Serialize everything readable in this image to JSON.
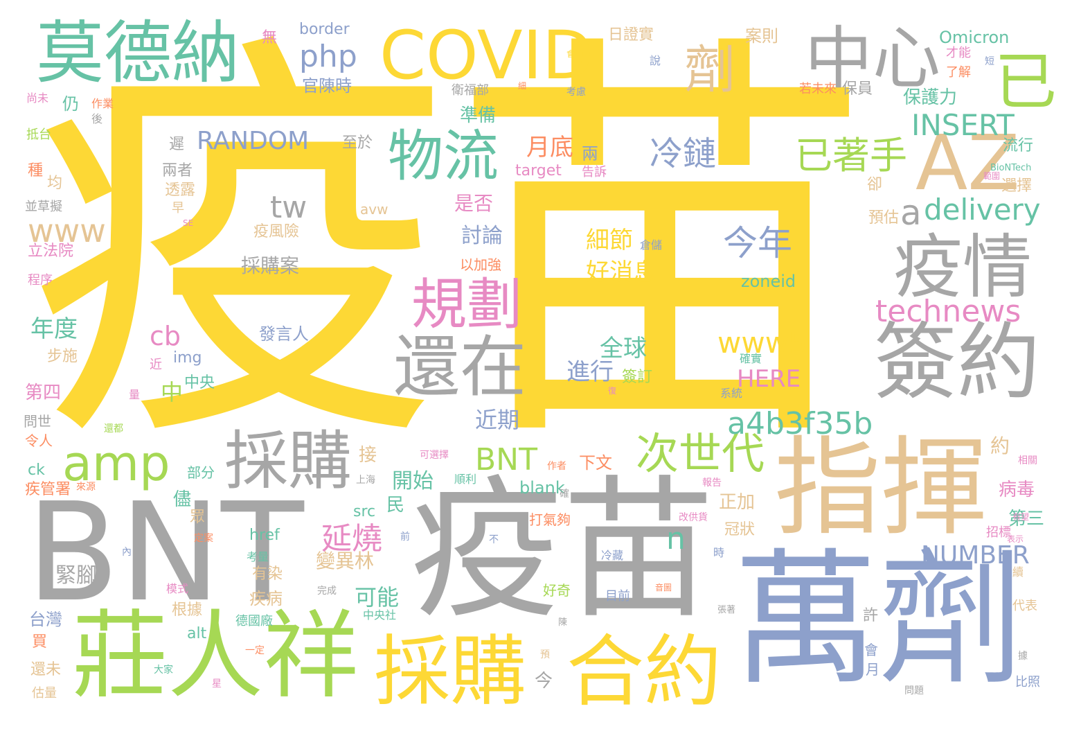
{
  "palette": {
    "yellow": "#fdd835",
    "grey": "#a6a6a6",
    "green": "#66c2a5",
    "blue": "#8da0cb",
    "lime": "#a6d854",
    "pink": "#e78ac3",
    "tan": "#e5c494",
    "orange": "#fc8d62"
  },
  "words": [
    {
      "text": "疫苗",
      "color": "yellow"
    },
    {
      "text": "BNT",
      "color": "grey"
    },
    {
      "text": "疫苗",
      "color": "grey"
    },
    {
      "text": "萬劑",
      "color": "blue"
    },
    {
      "text": "指揮",
      "color": "tan"
    },
    {
      "text": "莊人祥",
      "color": "lime"
    },
    {
      "text": "採購",
      "color": "yellow"
    },
    {
      "text": "合約",
      "color": "yellow"
    },
    {
      "text": "COVID",
      "color": "yellow"
    },
    {
      "text": "莫德納",
      "color": "green"
    },
    {
      "text": "中心",
      "color": "grey"
    },
    {
      "text": "AZ",
      "color": "tan"
    },
    {
      "text": "疫情",
      "color": "grey"
    },
    {
      "text": "簽約",
      "color": "grey"
    },
    {
      "text": "還在",
      "color": "grey"
    },
    {
      "text": "物流",
      "color": "green"
    },
    {
      "text": "採購",
      "color": "grey"
    },
    {
      "text": "規劃",
      "color": "pink"
    },
    {
      "text": "amp",
      "color": "lime"
    },
    {
      "text": "次世代",
      "color": "lime"
    },
    {
      "text": "已著手",
      "color": "lime"
    },
    {
      "text": "劑",
      "color": "tan"
    },
    {
      "text": "已",
      "color": "lime"
    },
    {
      "text": "php",
      "color": "blue"
    },
    {
      "text": "冷鏈",
      "color": "blue"
    },
    {
      "text": "今年",
      "color": "blue"
    },
    {
      "text": "INSERT",
      "color": "green"
    },
    {
      "text": "delivery",
      "color": "green"
    },
    {
      "text": "technews",
      "color": "pink"
    },
    {
      "text": "www5",
      "color": "yellow"
    },
    {
      "text": "a4b3f35b",
      "color": "green"
    },
    {
      "text": "RANDOM",
      "color": "blue"
    },
    {
      "text": "www",
      "color": "tan"
    },
    {
      "text": "tw",
      "color": "grey"
    },
    {
      "text": "a",
      "color": "grey"
    },
    {
      "text": "BNT",
      "color": "lime"
    },
    {
      "text": "延燒",
      "color": "pink"
    },
    {
      "text": "NUMBER",
      "color": "blue"
    },
    {
      "text": "月底",
      "color": "orange"
    },
    {
      "text": "細節",
      "color": "yellow"
    },
    {
      "text": "好消息",
      "color": "yellow"
    },
    {
      "text": "全球",
      "color": "green"
    },
    {
      "text": "進行",
      "color": "blue"
    },
    {
      "text": "HERE",
      "color": "pink"
    },
    {
      "text": "zoneid",
      "color": "green"
    },
    {
      "text": "cb",
      "color": "pink"
    },
    {
      "text": "年度",
      "color": "green"
    },
    {
      "text": "Omicron",
      "color": "green"
    },
    {
      "text": "border",
      "color": "blue"
    },
    {
      "text": "日證實",
      "color": "tan"
    },
    {
      "text": "官陳時",
      "color": "blue"
    },
    {
      "text": "衛福部",
      "color": "grey"
    },
    {
      "text": "準備",
      "color": "green"
    },
    {
      "text": "保護力",
      "color": "green"
    },
    {
      "text": "流行",
      "color": "green"
    },
    {
      "text": "選擇",
      "color": "tan"
    },
    {
      "text": "討論",
      "color": "blue"
    },
    {
      "text": "採購案",
      "color": "grey"
    },
    {
      "text": "疫風險",
      "color": "tan"
    },
    {
      "text": "以加強",
      "color": "orange"
    },
    {
      "text": "是否",
      "color": "pink"
    },
    {
      "text": "發言人",
      "color": "blue"
    },
    {
      "text": "img",
      "color": "blue"
    },
    {
      "text": "近期",
      "color": "blue"
    },
    {
      "text": "可能",
      "color": "green"
    },
    {
      "text": "開始",
      "color": "green"
    },
    {
      "text": "正加",
      "color": "tan"
    },
    {
      "text": "冠狀",
      "color": "tan"
    },
    {
      "text": "變異林",
      "color": "tan"
    },
    {
      "text": "病毒",
      "color": "pink"
    },
    {
      "text": "第三",
      "color": "green"
    },
    {
      "text": "第四",
      "color": "pink"
    },
    {
      "text": "步施",
      "color": "tan"
    },
    {
      "text": "中央",
      "color": "green"
    },
    {
      "text": "中",
      "color": "lime"
    },
    {
      "text": "n",
      "color": "green"
    },
    {
      "text": "blank",
      "color": "green"
    },
    {
      "text": "src",
      "color": "green"
    },
    {
      "text": "href",
      "color": "green"
    },
    {
      "text": "alt",
      "color": "green"
    },
    {
      "text": "緊腳",
      "color": "grey"
    },
    {
      "text": "有染",
      "color": "tan"
    },
    {
      "text": "疾病",
      "color": "tan"
    },
    {
      "text": "根據",
      "color": "tan"
    },
    {
      "text": "台灣",
      "color": "blue"
    },
    {
      "text": "買",
      "color": "orange"
    },
    {
      "text": "還未",
      "color": "tan"
    },
    {
      "text": "估量",
      "color": "tan"
    },
    {
      "text": "疾管署",
      "color": "orange"
    },
    {
      "text": "ck",
      "color": "green"
    },
    {
      "text": "令人",
      "color": "orange"
    },
    {
      "text": "問世",
      "color": "grey"
    },
    {
      "text": "立法院",
      "color": "pink"
    },
    {
      "text": "程序",
      "color": "pink"
    },
    {
      "text": "並草擬",
      "color": "grey"
    },
    {
      "text": "種",
      "color": "orange"
    },
    {
      "text": "均",
      "color": "tan"
    },
    {
      "text": "抵台",
      "color": "lime"
    },
    {
      "text": "尚未",
      "color": "pink"
    },
    {
      "text": "仍",
      "color": "green"
    },
    {
      "text": "無",
      "color": "pink"
    },
    {
      "text": "案則",
      "color": "tan"
    },
    {
      "text": "兩者",
      "color": "grey"
    },
    {
      "text": "透露",
      "color": "tan"
    },
    {
      "text": "早",
      "color": "tan"
    },
    {
      "text": "遲",
      "color": "grey"
    },
    {
      "text": "至於",
      "color": "grey"
    },
    {
      "text": "兩",
      "color": "blue"
    },
    {
      "text": "告訴",
      "color": "pink"
    },
    {
      "text": "target",
      "color": "pink"
    },
    {
      "text": "avw",
      "color": "tan"
    },
    {
      "text": "預估",
      "color": "tan"
    },
    {
      "text": "卻",
      "color": "tan"
    },
    {
      "text": "BioNTech",
      "color": "green"
    },
    {
      "text": "了解",
      "color": "orange"
    },
    {
      "text": "才能",
      "color": "pink"
    },
    {
      "text": "若未來",
      "color": "orange"
    },
    {
      "text": "保員",
      "color": "grey"
    },
    {
      "text": "打氣夠",
      "color": "orange"
    },
    {
      "text": "下文",
      "color": "orange"
    },
    {
      "text": "約",
      "color": "tan"
    },
    {
      "text": "接",
      "color": "tan"
    },
    {
      "text": "民",
      "color": "green"
    },
    {
      "text": "部分",
      "color": "green"
    },
    {
      "text": "儘",
      "color": "green"
    },
    {
      "text": "眾",
      "color": "tan"
    },
    {
      "text": "今",
      "color": "grey"
    },
    {
      "text": "許",
      "color": "grey"
    },
    {
      "text": "會",
      "color": "blue"
    },
    {
      "text": "月",
      "color": "blue"
    },
    {
      "text": "代表",
      "color": "tan"
    },
    {
      "text": "比照",
      "color": "blue"
    },
    {
      "text": "招標",
      "color": "pink"
    },
    {
      "text": "相關",
      "color": "pink"
    },
    {
      "text": "模式",
      "color": "pink"
    },
    {
      "text": "好奇",
      "color": "lime"
    },
    {
      "text": "目前",
      "color": "blue"
    },
    {
      "text": "冷藏",
      "color": "blue"
    },
    {
      "text": "完成",
      "color": "grey"
    },
    {
      "text": "德國廠",
      "color": "green"
    },
    {
      "text": "中央社",
      "color": "green"
    },
    {
      "text": "大家",
      "color": "green"
    },
    {
      "text": "考量",
      "color": "green"
    },
    {
      "text": "簽訂",
      "color": "lime"
    },
    {
      "text": "確實",
      "color": "green"
    },
    {
      "text": "系統",
      "color": "blue"
    },
    {
      "text": "倉儲",
      "color": "blue"
    },
    {
      "text": "順利",
      "color": "green"
    },
    {
      "text": "可選擇",
      "color": "pink"
    },
    {
      "text": "上海",
      "color": "grey"
    },
    {
      "text": "報告",
      "color": "pink"
    },
    {
      "text": "改供貨",
      "color": "pink"
    },
    {
      "text": "作者",
      "color": "orange"
    },
    {
      "text": "定案",
      "color": "orange"
    },
    {
      "text": "來源",
      "color": "orange"
    },
    {
      "text": "還都",
      "color": "lime"
    },
    {
      "text": "一定",
      "color": "orange"
    },
    {
      "text": "張著",
      "color": "grey"
    },
    {
      "text": "作業",
      "color": "orange"
    },
    {
      "text": "說",
      "color": "blue"
    },
    {
      "text": "後",
      "color": "grey"
    },
    {
      "text": "近",
      "color": "pink"
    },
    {
      "text": "量",
      "color": "pink"
    },
    {
      "text": "內",
      "color": "blue"
    },
    {
      "text": "不",
      "color": "blue"
    },
    {
      "text": "前",
      "color": "blue"
    },
    {
      "text": "時",
      "color": "blue"
    },
    {
      "text": "預",
      "color": "tan"
    },
    {
      "text": "星",
      "color": "pink"
    },
    {
      "text": "據",
      "color": "grey"
    },
    {
      "text": "問題",
      "color": "grey"
    },
    {
      "text": "表示",
      "color": "pink"
    },
    {
      "text": "續",
      "color": "tan"
    },
    {
      "text": "有望",
      "color": "pink"
    },
    {
      "text": "確",
      "color": "grey"
    },
    {
      "text": "陳",
      "color": "grey"
    },
    {
      "text": "音圖",
      "color": "orange"
    },
    {
      "text": "考慮",
      "color": "blue"
    },
    {
      "text": "細",
      "color": "orange"
    },
    {
      "text": "會",
      "color": "yellow"
    },
    {
      "text": "短",
      "color": "blue"
    },
    {
      "text": "範圍",
      "color": "pink"
    },
    {
      "text": "復",
      "color": "pink"
    },
    {
      "text": "SE",
      "color": "pink"
    }
  ]
}
